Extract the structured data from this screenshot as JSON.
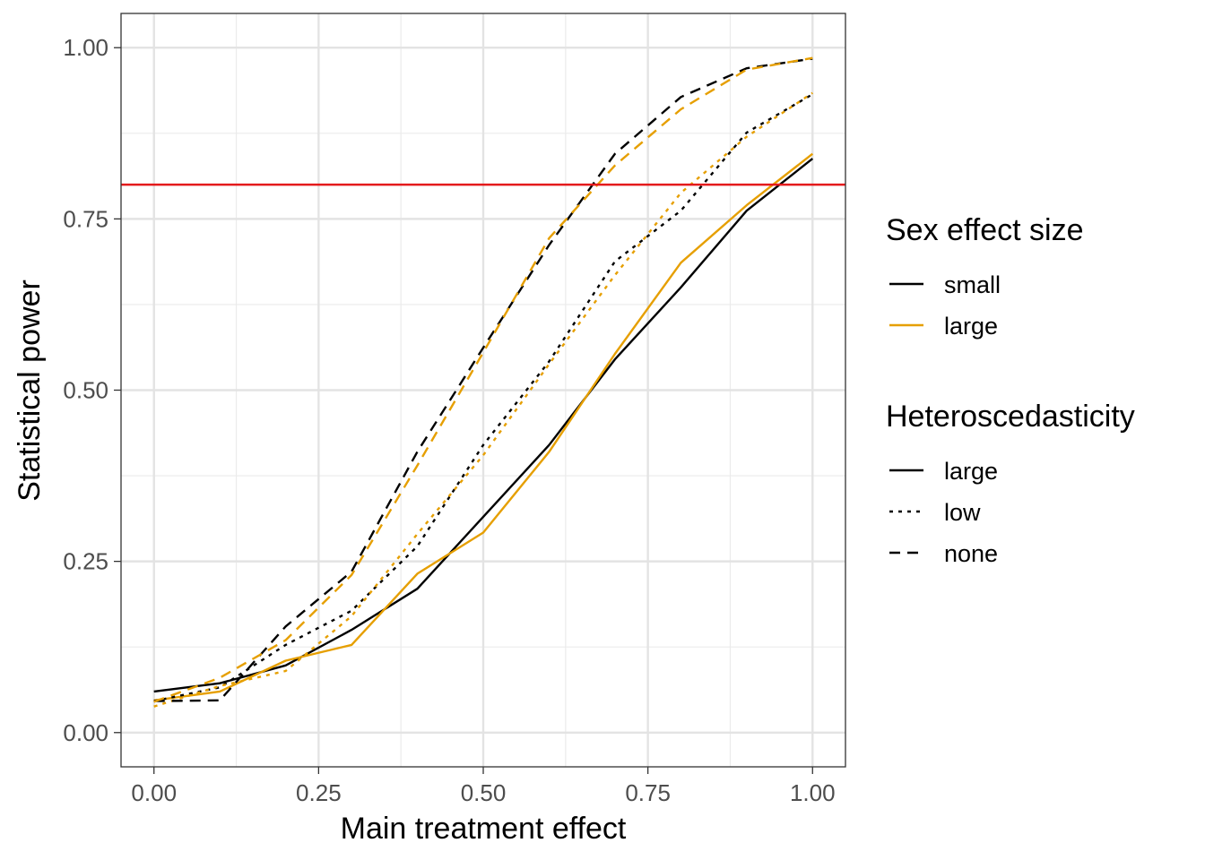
{
  "chart_data": {
    "type": "line",
    "xlabel": "Main treatment effect",
    "ylabel": "Statistical power",
    "xlim": [
      -0.05,
      1.05
    ],
    "ylim": [
      -0.05,
      1.05
    ],
    "x_ticks": [
      0.0,
      0.25,
      0.5,
      0.75,
      1.0
    ],
    "x_tick_labels": [
      "0.00",
      "0.25",
      "0.50",
      "0.75",
      "1.00"
    ],
    "y_ticks": [
      0.0,
      0.25,
      0.5,
      0.75,
      1.0
    ],
    "y_tick_labels": [
      "0.00",
      "0.25",
      "0.50",
      "0.75",
      "1.00"
    ],
    "grid": true,
    "reference_line": {
      "y": 0.8,
      "color": "#e41a1c"
    },
    "legends": [
      {
        "title": "Sex effect size",
        "position": "right",
        "entries": [
          {
            "label": "small",
            "color": "#000000",
            "linetype": "solid"
          },
          {
            "label": "large",
            "color": "#e69f00",
            "linetype": "solid"
          }
        ]
      },
      {
        "title": "Heteroscedasticity",
        "position": "right",
        "entries": [
          {
            "label": "large",
            "color": "#000000",
            "linetype": "solid"
          },
          {
            "label": "low",
            "color": "#000000",
            "linetype": "dotted"
          },
          {
            "label": "none",
            "color": "#000000",
            "linetype": "dashed"
          }
        ]
      }
    ],
    "x": [
      0.0,
      0.1,
      0.2,
      0.3,
      0.4,
      0.5,
      0.6,
      0.7,
      0.8,
      0.9,
      1.0
    ],
    "series": [
      {
        "sex_effect": "small",
        "heteroscedasticity": "large",
        "color": "#000000",
        "linetype": "solid",
        "values": [
          0.06,
          0.072,
          0.098,
          0.15,
          0.21,
          0.315,
          0.42,
          0.545,
          0.65,
          0.762,
          0.838
        ]
      },
      {
        "sex_effect": "large",
        "heteroscedasticity": "large",
        "color": "#e69f00",
        "linetype": "solid",
        "values": [
          0.047,
          0.06,
          0.105,
          0.128,
          0.232,
          0.292,
          0.41,
          0.553,
          0.686,
          0.77,
          0.845
        ]
      },
      {
        "sex_effect": "small",
        "heteroscedasticity": "low",
        "color": "#000000",
        "linetype": "dotted",
        "values": [
          0.046,
          0.066,
          0.128,
          0.178,
          0.272,
          0.42,
          0.542,
          0.688,
          0.762,
          0.876,
          0.932
        ]
      },
      {
        "sex_effect": "large",
        "heteroscedasticity": "low",
        "color": "#e69f00",
        "linetype": "dotted",
        "values": [
          0.038,
          0.068,
          0.09,
          0.17,
          0.29,
          0.405,
          0.538,
          0.668,
          0.788,
          0.87,
          0.934
        ]
      },
      {
        "sex_effect": "small",
        "heteroscedasticity": "none",
        "color": "#000000",
        "linetype": "dashed",
        "values": [
          0.046,
          0.047,
          0.155,
          0.235,
          0.41,
          0.562,
          0.712,
          0.845,
          0.928,
          0.97,
          0.984
        ]
      },
      {
        "sex_effect": "large",
        "heteroscedasticity": "none",
        "color": "#e69f00",
        "linetype": "dashed",
        "values": [
          0.045,
          0.08,
          0.135,
          0.23,
          0.39,
          0.555,
          0.722,
          0.828,
          0.91,
          0.968,
          0.985
        ]
      }
    ]
  }
}
